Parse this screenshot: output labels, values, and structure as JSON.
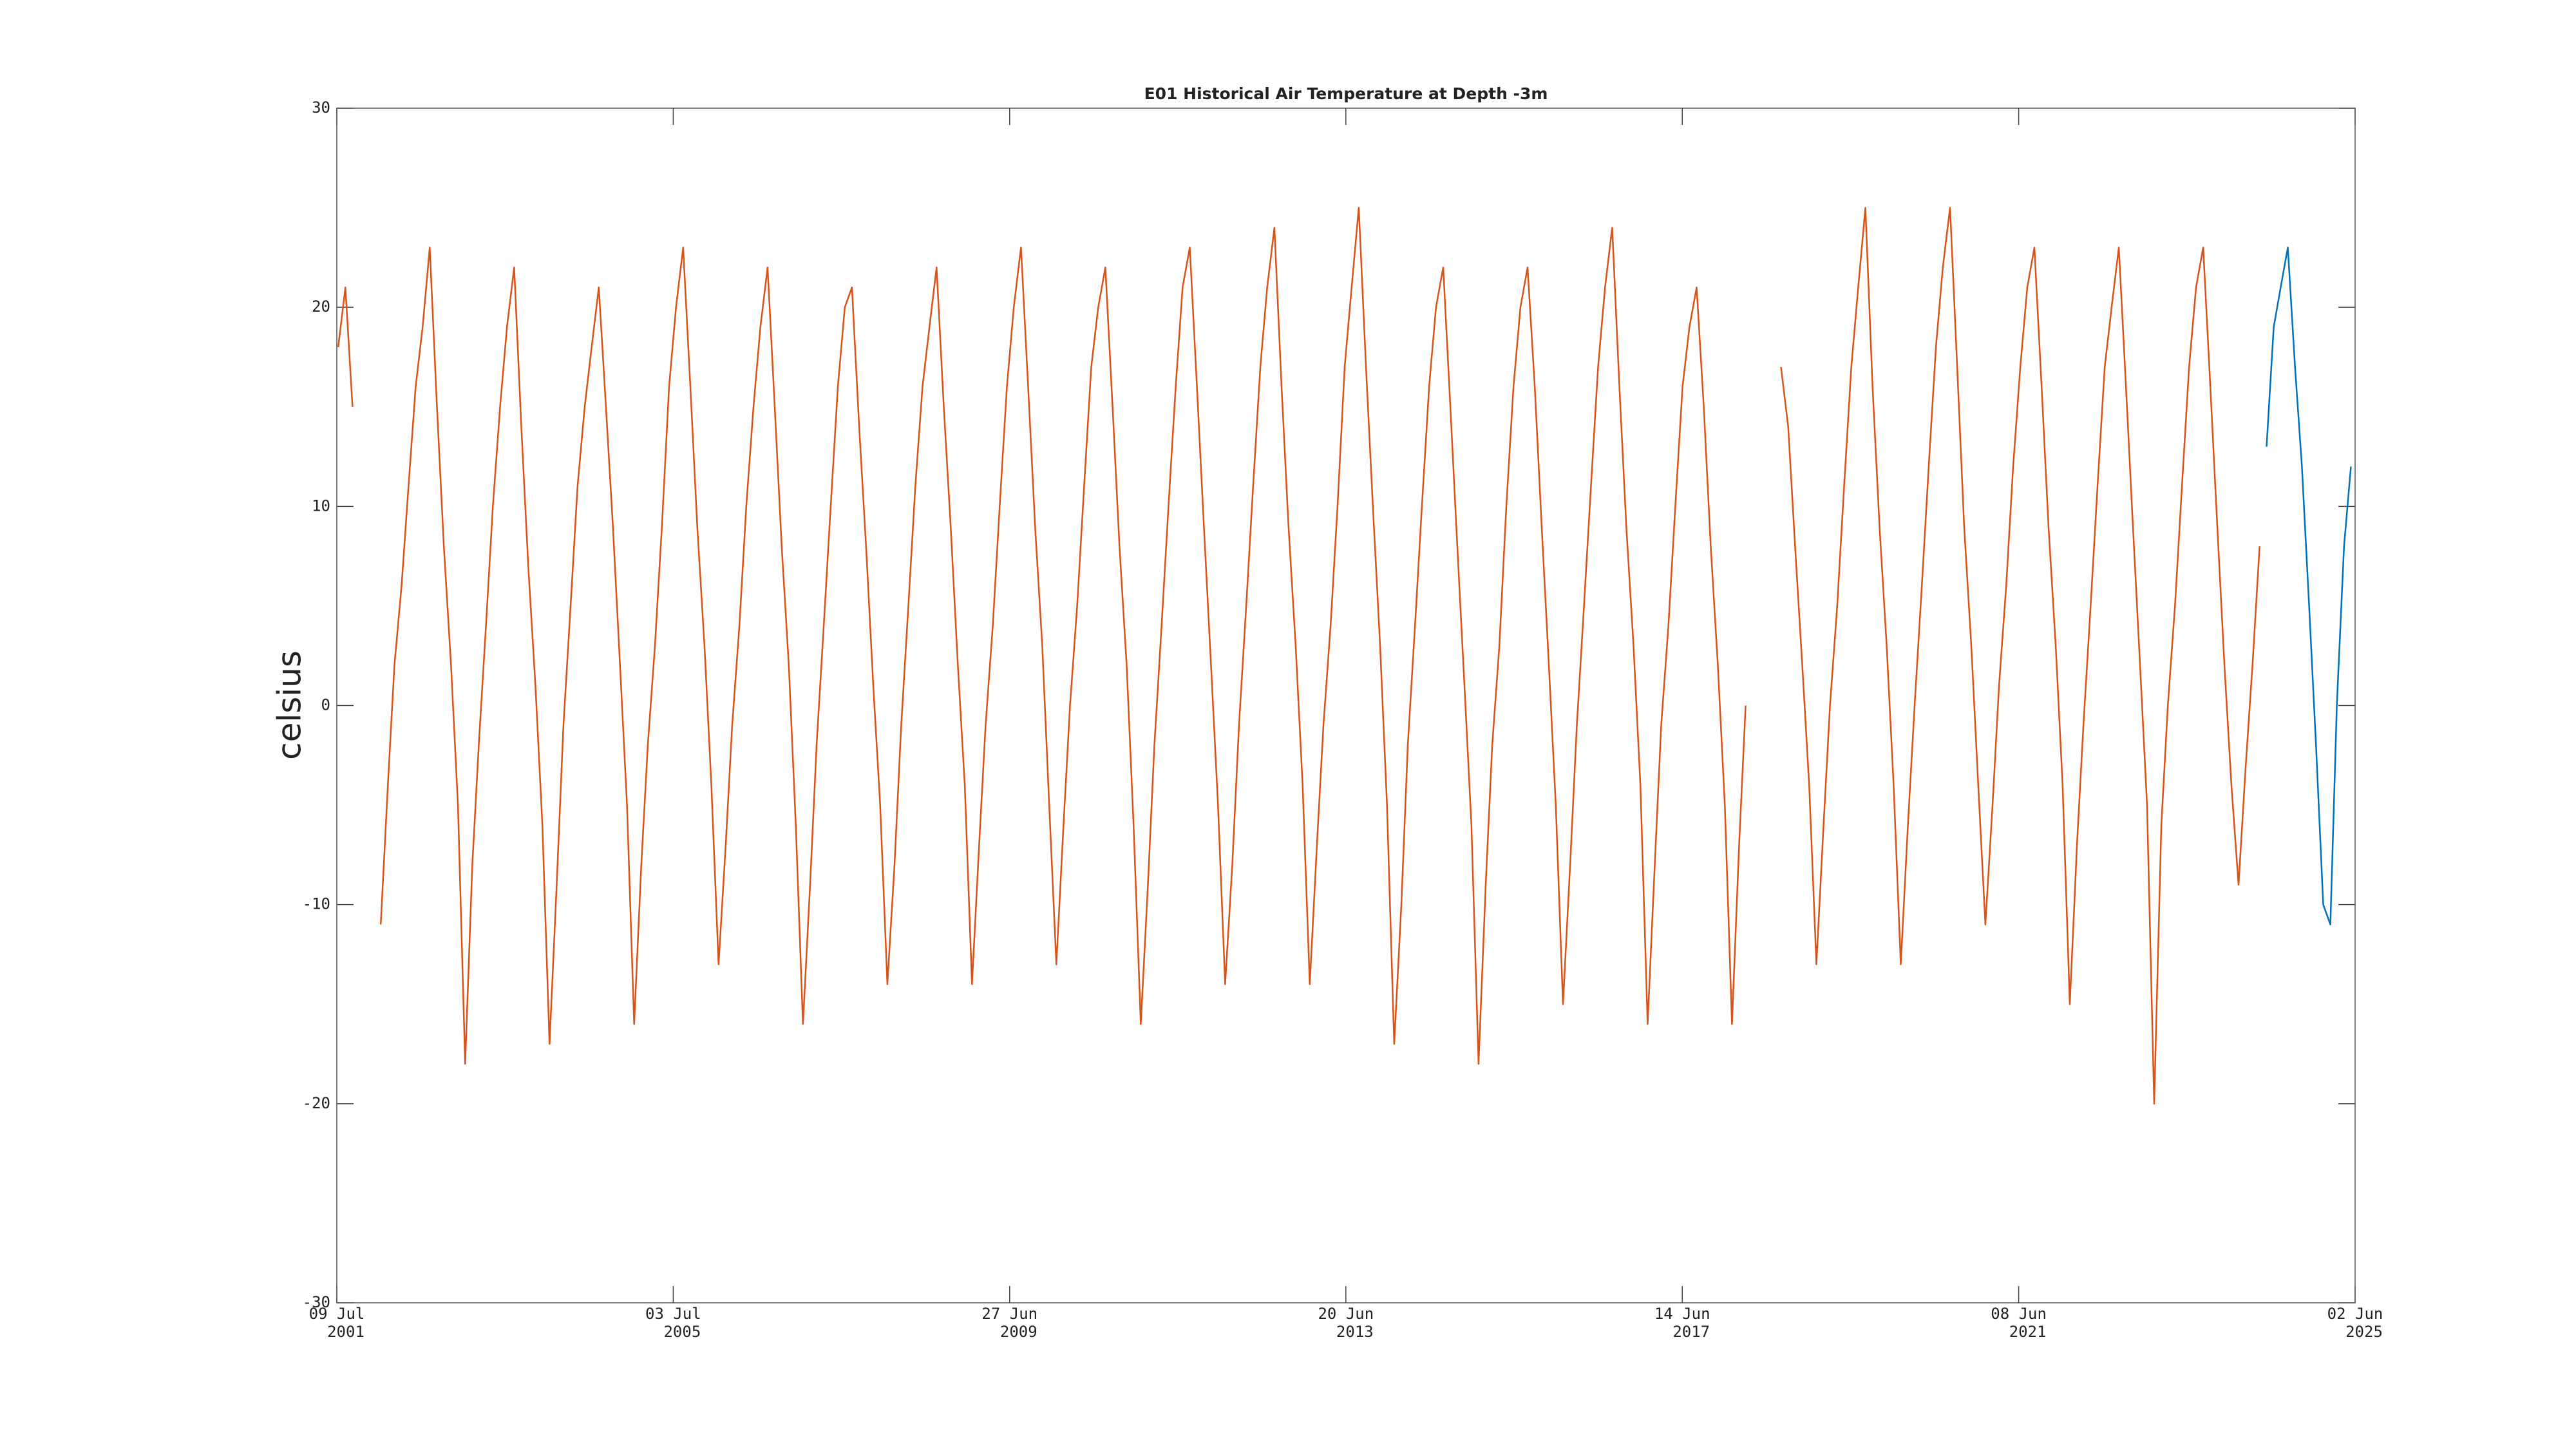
{
  "chart_data": {
    "type": "line",
    "title": "E01 Historical Air Temperature at Depth -3m",
    "y_label": "celsius",
    "xlim": [
      "2001-07-09",
      "2025-06-02"
    ],
    "xticks": [
      {
        "value": "2001-07-09",
        "label": [
          "09 Jul",
          "2001"
        ]
      },
      {
        "value": "2005-07-03",
        "label": [
          "03 Jul",
          "2005"
        ]
      },
      {
        "value": "2009-06-27",
        "label": [
          "27 Jun",
          "2009"
        ]
      },
      {
        "value": "2013-06-20",
        "label": [
          "20 Jun",
          "2013"
        ]
      },
      {
        "value": "2017-06-14",
        "label": [
          "14 Jun",
          "2017"
        ]
      },
      {
        "value": "2021-06-08",
        "label": [
          "08 Jun",
          "2021"
        ]
      },
      {
        "value": "2025-06-02",
        "label": [
          "02 Jun",
          "2025"
        ]
      }
    ],
    "ylim": [
      -30,
      30
    ],
    "yticks": [
      -30,
      -20,
      -10,
      0,
      10,
      20,
      30
    ],
    "grid": false,
    "series": [
      {
        "color": "#d95319",
        "x": [
          "2001-07-15",
          "2001-08-15",
          "2001-09-15",
          "2001-10-15",
          "2001-11-15",
          "2001-12-15",
          "2002-01-15",
          "2002-02-15",
          "2002-03-15",
          "2002-04-15",
          "2002-05-15",
          "2002-06-15",
          "2002-07-15",
          "2002-08-15",
          "2002-09-15",
          "2002-10-15",
          "2002-11-15",
          "2002-12-15",
          "2003-01-15",
          "2003-02-15",
          "2003-03-15",
          "2003-04-15",
          "2003-05-15",
          "2003-06-15",
          "2003-07-15",
          "2003-08-15",
          "2003-09-15",
          "2003-10-15",
          "2003-11-15",
          "2003-12-15",
          "2004-01-15",
          "2004-02-15",
          "2004-03-15",
          "2004-04-15",
          "2004-05-15",
          "2004-06-15",
          "2004-07-15",
          "2004-08-15",
          "2004-09-15",
          "2004-10-15",
          "2004-11-15",
          "2004-12-15",
          "2005-01-15",
          "2005-02-15",
          "2005-03-15",
          "2005-04-15",
          "2005-05-15",
          "2005-06-15",
          "2005-07-15",
          "2005-08-15",
          "2005-09-15",
          "2005-10-15",
          "2005-11-15",
          "2005-12-15",
          "2006-01-15",
          "2006-02-15",
          "2006-03-15",
          "2006-04-15",
          "2006-05-15",
          "2006-06-15",
          "2006-07-15",
          "2006-08-15",
          "2006-09-15",
          "2006-10-15",
          "2006-11-15",
          "2006-12-15",
          "2007-01-15",
          "2007-02-15",
          "2007-03-15",
          "2007-04-15",
          "2007-05-15",
          "2007-06-15",
          "2007-07-15",
          "2007-08-15",
          "2007-09-15",
          "2007-10-15",
          "2007-11-15",
          "2007-12-15",
          "2008-01-15",
          "2008-02-15",
          "2008-03-15",
          "2008-04-15",
          "2008-05-15",
          "2008-06-15",
          "2008-07-15",
          "2008-08-15",
          "2008-09-15",
          "2008-10-15",
          "2008-11-15",
          "2008-12-15",
          "2009-01-15",
          "2009-02-15",
          "2009-03-15",
          "2009-04-15",
          "2009-05-15",
          "2009-06-15",
          "2009-07-15",
          "2009-08-15",
          "2009-09-15",
          "2009-10-15",
          "2009-11-15",
          "2009-12-15",
          "2010-01-15",
          "2010-02-15",
          "2010-03-15",
          "2010-04-15",
          "2010-05-15",
          "2010-06-15",
          "2010-07-15",
          "2010-08-15",
          "2010-09-15",
          "2010-10-15",
          "2010-11-15",
          "2010-12-15",
          "2011-01-15",
          "2011-02-15",
          "2011-03-15",
          "2011-04-15",
          "2011-05-15",
          "2011-06-15",
          "2011-07-15",
          "2011-08-15",
          "2011-09-15",
          "2011-10-15",
          "2011-11-15",
          "2011-12-15",
          "2012-01-15",
          "2012-02-15",
          "2012-03-15",
          "2012-04-15",
          "2012-05-15",
          "2012-06-15",
          "2012-07-15",
          "2012-08-15",
          "2012-09-15",
          "2012-10-15",
          "2012-11-15",
          "2012-12-15",
          "2013-01-15",
          "2013-02-15",
          "2013-03-15",
          "2013-04-15",
          "2013-05-15",
          "2013-06-15",
          "2013-07-15",
          "2013-08-15",
          "2013-09-15",
          "2013-10-15",
          "2013-11-15",
          "2013-12-15",
          "2014-01-15",
          "2014-02-15",
          "2014-03-15",
          "2014-04-15",
          "2014-05-15",
          "2014-06-15",
          "2014-07-15",
          "2014-08-15",
          "2014-09-15",
          "2014-10-15",
          "2014-11-15",
          "2014-12-15",
          "2015-01-15",
          "2015-02-15",
          "2015-03-15",
          "2015-04-15",
          "2015-05-15",
          "2015-06-15",
          "2015-07-15",
          "2015-08-15",
          "2015-09-15",
          "2015-10-15",
          "2015-11-15",
          "2015-12-15",
          "2016-01-15",
          "2016-02-15",
          "2016-03-15",
          "2016-04-15",
          "2016-05-15",
          "2016-06-15",
          "2016-07-15",
          "2016-08-15",
          "2016-09-15",
          "2016-10-15",
          "2016-11-15",
          "2016-12-15",
          "2017-01-15",
          "2017-02-15",
          "2017-03-15",
          "2017-04-15",
          "2017-05-15",
          "2017-06-15",
          "2017-07-15",
          "2017-08-15",
          "2017-09-15",
          "2017-10-15",
          "2017-11-15",
          "2017-12-15",
          "2018-01-15",
          "2018-02-15",
          "2018-03-15",
          "2018-04-15",
          "2018-05-15",
          "2018-06-15",
          "2018-07-15",
          "2018-08-15",
          "2018-09-15",
          "2018-10-15",
          "2018-11-15",
          "2018-12-15",
          "2019-01-15",
          "2019-02-15",
          "2019-03-15",
          "2019-04-15",
          "2019-05-15",
          "2019-06-15",
          "2019-07-15",
          "2019-08-15",
          "2019-09-15",
          "2019-10-15",
          "2019-11-15",
          "2019-12-15",
          "2020-01-15",
          "2020-02-15",
          "2020-03-15",
          "2020-04-15",
          "2020-05-15",
          "2020-06-15",
          "2020-07-15",
          "2020-08-15",
          "2020-09-15",
          "2020-10-15",
          "2020-11-15",
          "2020-12-15",
          "2021-01-15",
          "2021-02-15",
          "2021-03-15",
          "2021-04-15",
          "2021-05-15",
          "2021-06-15",
          "2021-07-15",
          "2021-08-15",
          "2021-09-15",
          "2021-10-15",
          "2021-11-15",
          "2021-12-15",
          "2022-01-15",
          "2022-02-15",
          "2022-03-15",
          "2022-04-15",
          "2022-05-15",
          "2022-06-15",
          "2022-07-15",
          "2022-08-15",
          "2022-09-15",
          "2022-10-15",
          "2022-11-15",
          "2022-12-15",
          "2023-01-15",
          "2023-02-15",
          "2023-03-15",
          "2023-04-15",
          "2023-05-15",
          "2023-06-15",
          "2023-07-15",
          "2023-08-15",
          "2023-09-15",
          "2023-10-15",
          "2023-11-15",
          "2023-12-15",
          "2024-01-15",
          "2024-02-15",
          "2024-03-15",
          "2024-04-15"
        ],
        "values": [
          18,
          21,
          15,
          null,
          null,
          null,
          -11,
          -4,
          2,
          6,
          11,
          16,
          19,
          23,
          15,
          8,
          2,
          -5,
          -18,
          -8,
          -2,
          4,
          10,
          15,
          19,
          22,
          14,
          7,
          1,
          -6,
          -17,
          -9,
          -1,
          5,
          11,
          15,
          18,
          21,
          15,
          9,
          2,
          -5,
          -16,
          -8,
          -2,
          3,
          9,
          16,
          20,
          23,
          16,
          9,
          3,
          -4,
          -13,
          -7,
          -1,
          4,
          10,
          15,
          19,
          22,
          15,
          8,
          2,
          -6,
          -16,
          -9,
          -2,
          4,
          10,
          16,
          20,
          21,
          14,
          8,
          1,
          -5,
          -14,
          -8,
          -1,
          5,
          11,
          16,
          19,
          22,
          15,
          9,
          2,
          -4,
          -14,
          -7,
          -1,
          4,
          10,
          16,
          20,
          23,
          16,
          9,
          3,
          -5,
          -13,
          -6,
          0,
          5,
          11,
          17,
          20,
          22,
          15,
          8,
          2,
          -6,
          -16,
          -9,
          -2,
          4,
          10,
          16,
          21,
          23,
          16,
          9,
          2,
          -5,
          -14,
          -8,
          -1,
          5,
          11,
          17,
          21,
          24,
          16,
          9,
          3,
          -4,
          -14,
          -7,
          -1,
          4,
          10,
          17,
          21,
          25,
          17,
          10,
          3,
          -5,
          -17,
          -10,
          -2,
          4,
          10,
          16,
          20,
          22,
          15,
          8,
          1,
          -6,
          -18,
          -9,
          -2,
          3,
          10,
          16,
          20,
          22,
          16,
          9,
          2,
          -5,
          -15,
          -8,
          -1,
          5,
          11,
          17,
          21,
          24,
          16,
          9,
          3,
          -4,
          -16,
          -8,
          -1,
          4,
          10,
          16,
          19,
          21,
          15,
          8,
          2,
          -5,
          -16,
          -7,
          0,
          null,
          null,
          null,
          null,
          17,
          14,
          8,
          2,
          -4,
          -13,
          -6,
          0,
          5,
          11,
          17,
          21,
          25,
          16,
          9,
          3,
          -4,
          -13,
          -6,
          0,
          6,
          12,
          18,
          22,
          25,
          17,
          9,
          3,
          -4,
          -11,
          -5,
          1,
          6,
          12,
          17,
          21,
          23,
          16,
          9,
          3,
          -4,
          -15,
          -7,
          -1,
          5,
          11,
          17,
          20,
          23,
          16,
          9,
          2,
          -5,
          -20,
          -6,
          0,
          5,
          11,
          17,
          21,
          23,
          16,
          9,
          2,
          -4,
          -9,
          -3,
          2,
          8
        ]
      },
      {
        "color": "#0072bd",
        "x": [
          "2024-05-15",
          "2024-06-15",
          "2024-07-15",
          "2024-08-15",
          "2024-09-15",
          "2024-10-15",
          "2024-11-15",
          "2024-12-15",
          "2025-01-15",
          "2025-02-15",
          "2025-03-15",
          "2025-04-15",
          "2025-05-15"
        ],
        "values": [
          13,
          19,
          21,
          23,
          17,
          12,
          5,
          -2,
          -10,
          -11,
          0,
          8,
          12
        ]
      }
    ]
  }
}
